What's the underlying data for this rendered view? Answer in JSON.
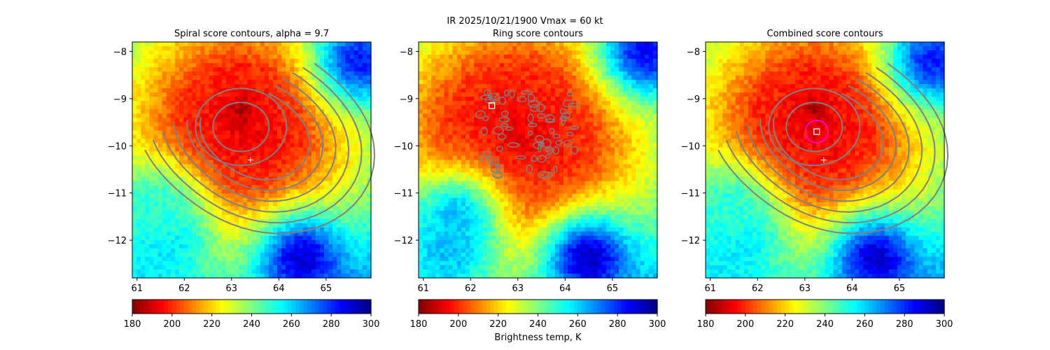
{
  "figure": {
    "suptitle": "IR  2025/10/21/1900    Vmax = 60 kt",
    "colorbar_label": "Brightness temp, K"
  },
  "chart_data": [
    {
      "type": "heatmap",
      "title": "Spiral score contours, alpha =  9.7",
      "x_ticks": [
        61,
        62,
        63,
        64,
        65
      ],
      "y_ticks": [
        -8,
        -9,
        -10,
        -11,
        -12
      ],
      "xlim": [
        60.9,
        65.95
      ],
      "ylim": [
        -12.8,
        -7.8
      ],
      "colormap": "jet",
      "colorbar": {
        "ticks": [
          180,
          200,
          220,
          240,
          260,
          280,
          300
        ],
        "range": [
          180,
          300
        ]
      },
      "overlay": "spiral score contours",
      "contour_color": "#808080",
      "contour_center": [
        63.2,
        -9.6
      ],
      "marker_plus": {
        "x": 63.4,
        "y": -10.3
      },
      "cloud_field": {
        "center": [
          63.2,
          -9.6
        ],
        "eye_center": [
          63.2,
          -9.2
        ],
        "inner_radius": 1.3,
        "clear_regions": [
          {
            "x": 61.6,
            "y": -12.0,
            "temp": 262
          },
          {
            "x": 64.5,
            "y": -12.4,
            "temp": 290
          },
          {
            "x": 65.7,
            "y": -8.2,
            "temp": 282
          },
          {
            "x": 61.4,
            "y": -11.3,
            "temp": 250
          }
        ]
      }
    },
    {
      "type": "heatmap",
      "title": "Ring score contours",
      "x_ticks": [
        61,
        62,
        63,
        64,
        65
      ],
      "y_ticks": [
        -8,
        -9,
        -10,
        -11,
        -12
      ],
      "xlim": [
        60.9,
        65.95
      ],
      "ylim": [
        -12.8,
        -7.8
      ],
      "colormap": "jet",
      "colorbar": {
        "ticks": [
          180,
          200,
          220,
          240,
          260,
          280,
          300
        ],
        "range": [
          180,
          300
        ],
        "label": "Brightness temp, K"
      },
      "overlay": "ring score contours",
      "contour_color": "#808080",
      "ring_region": {
        "x_range": [
          62.2,
          64.2
        ],
        "y_range": [
          -10.7,
          -8.8
        ]
      },
      "marker_square": {
        "x": 62.45,
        "y": -9.15
      },
      "cloud_field": {
        "center": [
          63.0,
          -9.8
        ],
        "inner_radius": 1.6,
        "clear_regions": [
          {
            "x": 61.7,
            "y": -11.5,
            "temp": 262
          },
          {
            "x": 64.5,
            "y": -12.4,
            "temp": 292
          },
          {
            "x": 65.7,
            "y": -8.0,
            "temp": 285
          },
          {
            "x": 61.5,
            "y": -12.3,
            "temp": 262
          }
        ]
      }
    },
    {
      "type": "heatmap",
      "title": "Combined score contours",
      "x_ticks": [
        61,
        62,
        63,
        64,
        65
      ],
      "y_ticks": [
        -8,
        -9,
        -10,
        -11,
        -12
      ],
      "xlim": [
        60.9,
        65.95
      ],
      "ylim": [
        -12.8,
        -7.8
      ],
      "colormap": "jet",
      "colorbar": {
        "ticks": [
          180,
          200,
          220,
          240,
          260,
          280,
          300
        ],
        "range": [
          180,
          300
        ]
      },
      "overlay": "combined score contours",
      "contour_color": "#808080",
      "contour_center": [
        63.2,
        -9.6
      ],
      "marker_plus": {
        "x": 63.4,
        "y": -10.3
      },
      "marker_square": {
        "x": 63.25,
        "y": -9.7
      },
      "marker_circle": {
        "x": 63.25,
        "y": -9.7,
        "color": "#ff00ff"
      },
      "cloud_field": {
        "center": [
          63.2,
          -9.6
        ],
        "eye_center": [
          63.2,
          -9.2
        ],
        "inner_radius": 1.3,
        "clear_regions": [
          {
            "x": 61.6,
            "y": -12.0,
            "temp": 262
          },
          {
            "x": 64.5,
            "y": -12.4,
            "temp": 290
          },
          {
            "x": 65.7,
            "y": -8.2,
            "temp": 282
          },
          {
            "x": 61.4,
            "y": -11.3,
            "temp": 250
          }
        ]
      }
    }
  ]
}
